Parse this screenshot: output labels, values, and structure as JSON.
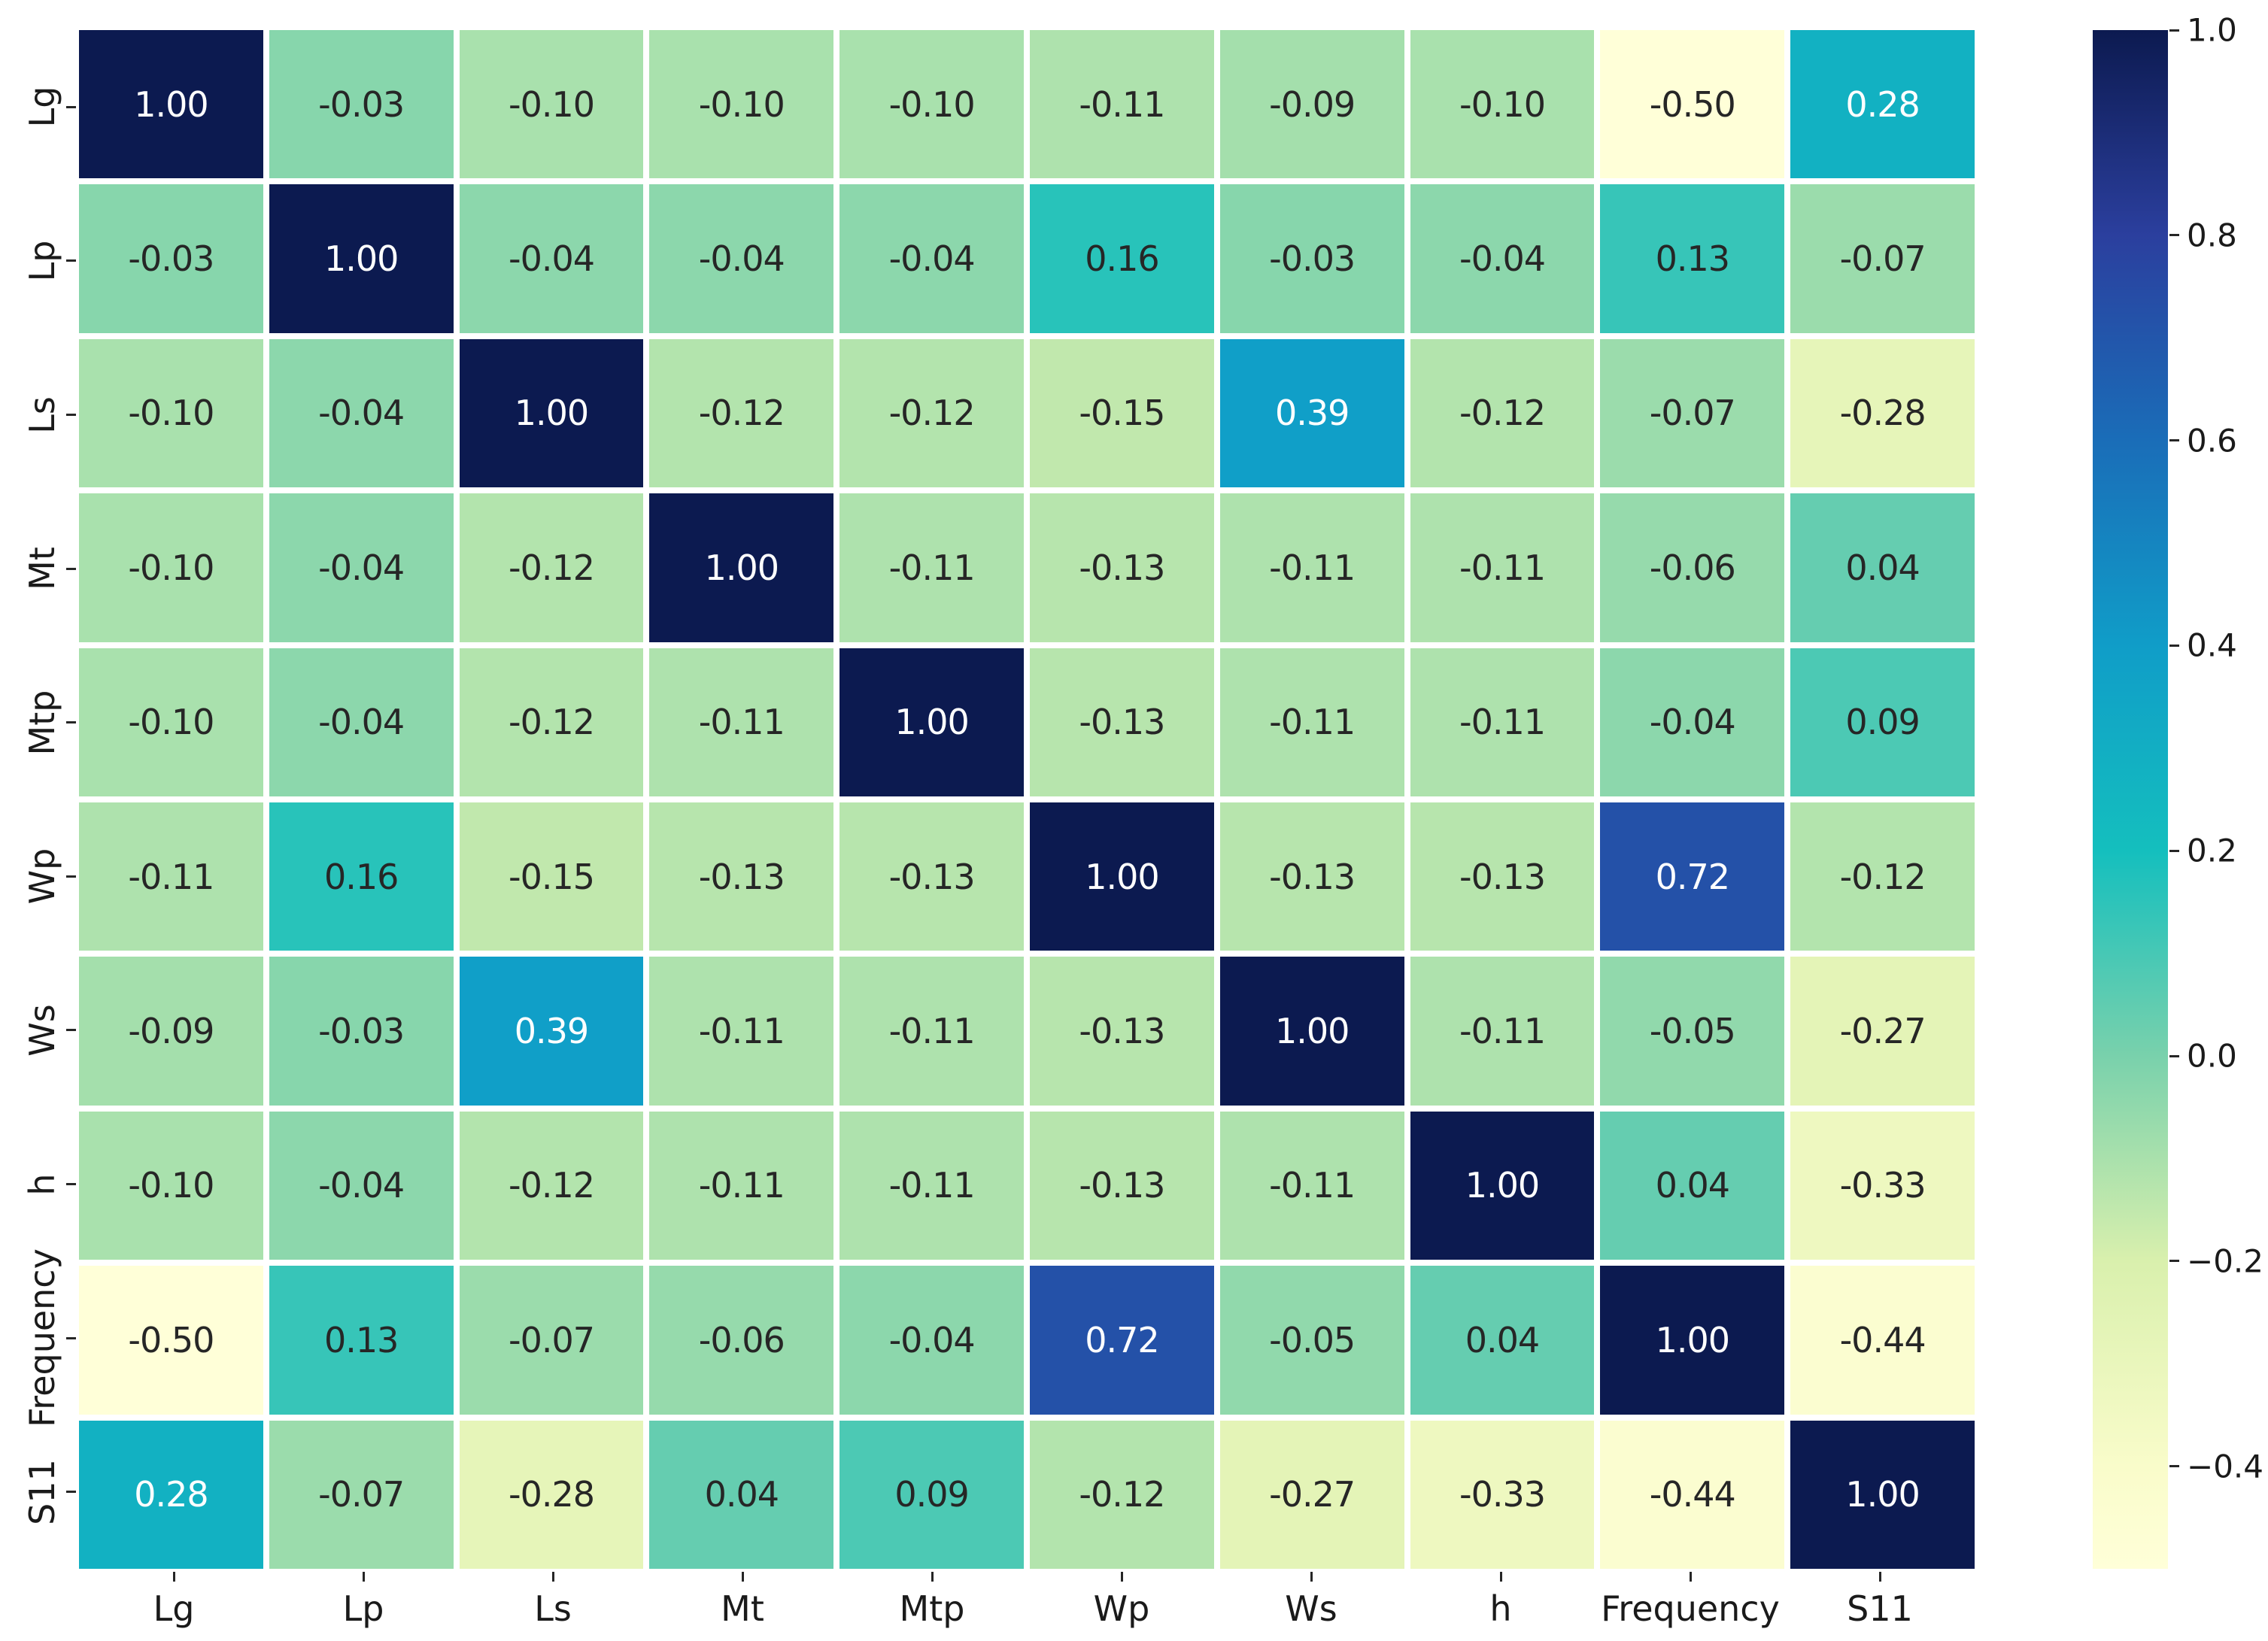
{
  "chart_data": {
    "type": "heatmap",
    "title": "",
    "xlabel": "",
    "ylabel": "",
    "categories": [
      "Lg",
      "Lp",
      "Ls",
      "Mt",
      "Mtp",
      "Wp",
      "Ws",
      "h",
      "Frequency",
      "S11"
    ],
    "matrix": [
      [
        1.0,
        -0.03,
        -0.1,
        -0.1,
        -0.1,
        -0.11,
        -0.09,
        -0.1,
        -0.5,
        0.28
      ],
      [
        -0.03,
        1.0,
        -0.04,
        -0.04,
        -0.04,
        0.16,
        -0.03,
        -0.04,
        0.13,
        -0.07
      ],
      [
        -0.1,
        -0.04,
        1.0,
        -0.12,
        -0.12,
        -0.15,
        0.39,
        -0.12,
        -0.07,
        -0.28
      ],
      [
        -0.1,
        -0.04,
        -0.12,
        1.0,
        -0.11,
        -0.13,
        -0.11,
        -0.11,
        -0.06,
        0.04
      ],
      [
        -0.1,
        -0.04,
        -0.12,
        -0.11,
        1.0,
        -0.13,
        -0.11,
        -0.11,
        -0.04,
        0.09
      ],
      [
        -0.11,
        0.16,
        -0.15,
        -0.13,
        -0.13,
        1.0,
        -0.13,
        -0.13,
        0.72,
        -0.12
      ],
      [
        -0.09,
        -0.03,
        0.39,
        -0.11,
        -0.11,
        -0.13,
        1.0,
        -0.11,
        -0.05,
        -0.27
      ],
      [
        -0.1,
        -0.04,
        -0.12,
        -0.11,
        -0.11,
        -0.13,
        -0.11,
        1.0,
        0.04,
        -0.33
      ],
      [
        -0.5,
        0.13,
        -0.07,
        -0.06,
        -0.04,
        0.72,
        -0.05,
        0.04,
        1.0,
        -0.44
      ],
      [
        0.28,
        -0.07,
        -0.28,
        0.04,
        0.09,
        -0.12,
        -0.27,
        -0.33,
        -0.44,
        1.0
      ]
    ],
    "value_decimals": 2,
    "vmin": -0.5,
    "vmax": 1.0,
    "colormap_name": "YlGnBu",
    "colormap_stops": [
      {
        "value": -0.5,
        "color": "#ffffd8"
      },
      {
        "value": -0.4,
        "color": "#f9fcca"
      },
      {
        "value": -0.2,
        "color": "#d9f0ad"
      },
      {
        "value": 0.0,
        "color": "#79d1ac"
      },
      {
        "value": 0.2,
        "color": "#14bfbe"
      },
      {
        "value": 0.4,
        "color": "#109dc8"
      },
      {
        "value": 0.6,
        "color": "#1a6db8"
      },
      {
        "value": 0.8,
        "color": "#2b3f9e"
      },
      {
        "value": 1.0,
        "color": "#0c1a50"
      }
    ],
    "colorbar": {
      "position": "right",
      "tick_labels": [
        "1.0",
        "0.8",
        "0.6",
        "0.4",
        "0.2",
        "0.0",
        "−0.2",
        "−0.4"
      ],
      "tick_values": [
        1.0,
        0.8,
        0.6,
        0.4,
        0.2,
        0.0,
        -0.2,
        -0.4
      ]
    },
    "legend": false,
    "grid_gap_color": "#ffffff",
    "colors": {
      "background": "#ffffff",
      "annotation_dark": "#262626",
      "annotation_light": "#ffffff",
      "axis_label": "#1a1a1a",
      "tick_mark": "#262626"
    },
    "luminance_threshold": 0.408
  }
}
